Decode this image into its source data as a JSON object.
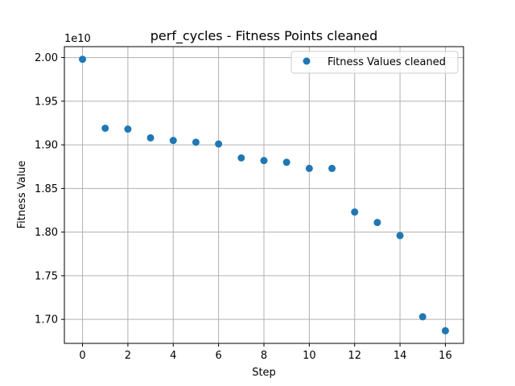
{
  "chart_data": {
    "type": "scatter",
    "title": "perf_cycles - Fitness Points cleaned",
    "xlabel": "Step",
    "ylabel": "Fitness Value",
    "y_offset_label": "1e10",
    "y_scale": 10000000000,
    "xlim": [
      -0.8,
      16.8
    ],
    "ylim": [
      1.6725,
      2.0125
    ],
    "x_ticks": [
      0,
      2,
      4,
      6,
      8,
      10,
      12,
      14,
      16
    ],
    "x_tick_labels": [
      "0",
      "2",
      "4",
      "6",
      "8",
      "10",
      "12",
      "14",
      "16"
    ],
    "y_ticks": [
      1.7,
      1.75,
      1.8,
      1.85,
      1.9,
      1.95,
      2.0
    ],
    "y_tick_labels": [
      "1.70",
      "1.75",
      "1.80",
      "1.85",
      "1.90",
      "1.95",
      "2.00"
    ],
    "grid": true,
    "legend_position": "top-right",
    "colors": {
      "marker": "#1f77b4",
      "grid": "#b0b0b0",
      "axes": "#000000"
    },
    "series": [
      {
        "name": "Fitness Values cleaned",
        "x": [
          0,
          1,
          2,
          3,
          4,
          5,
          6,
          7,
          8,
          9,
          10,
          11,
          12,
          13,
          14,
          15,
          16
        ],
        "y": [
          1.998,
          1.919,
          1.918,
          1.908,
          1.905,
          1.903,
          1.901,
          1.885,
          1.882,
          1.88,
          1.873,
          1.873,
          1.823,
          1.811,
          1.796,
          1.703,
          1.687
        ]
      }
    ]
  }
}
